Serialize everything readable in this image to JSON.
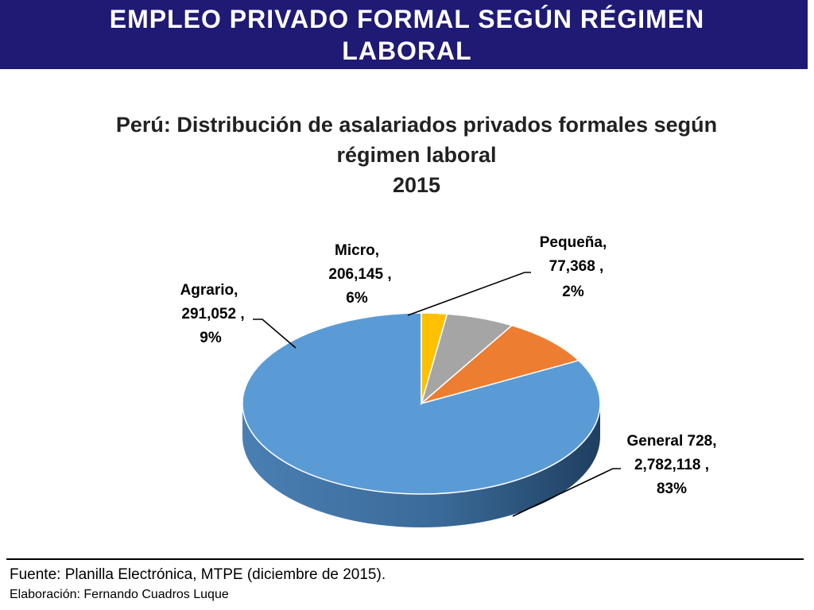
{
  "header": {
    "title_line1": "EMPLEO PRIVADO FORMAL SEGÚN RÉGIMEN",
    "title_line2": "LABORAL"
  },
  "chart_data": {
    "type": "pie",
    "title_line1": "Perú: Distribución de asalariados privados formales según",
    "title_line2": "régimen laboral",
    "title_line3": "2015",
    "slices": [
      {
        "name": "General 728",
        "value": 2782118,
        "value_label": "2,782,118",
        "percent_label": "83%",
        "color": "#5b9bd5"
      },
      {
        "name": "Agrario",
        "value": 291052,
        "value_label": "291,052",
        "percent_label": "9%",
        "color": "#ed7d31"
      },
      {
        "name": "Micro",
        "value": 206145,
        "value_label": "206,145",
        "percent_label": "6%",
        "color": "#a5a5a5"
      },
      {
        "name": "Pequeña",
        "value": 77368,
        "value_label": "77,368",
        "percent_label": "2%",
        "color": "#ffc000"
      }
    ],
    "labels": {
      "general": {
        "l1": "General 728,",
        "l2": "2,782,118 ,",
        "l3": "83%"
      },
      "agrario": {
        "l1": "Agrario,",
        "l2": "291,052 ,",
        "l3": "9%"
      },
      "micro": {
        "l1": "Micro,",
        "l2": "206,145 ,",
        "l3": "6%"
      },
      "pequena": {
        "l1": "Pequeña,",
        "l2": "77,368 ,",
        "l3": "2%"
      }
    }
  },
  "footer": {
    "source": "Fuente: Planilla Electrónica, MTPE (diciembre de 2015).",
    "credit": "Elaboración: Fernando Cuadros Luque"
  }
}
